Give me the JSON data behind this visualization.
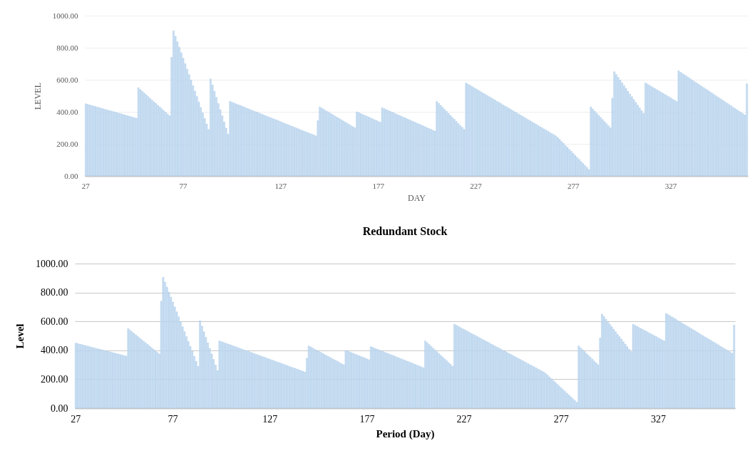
{
  "chart_data": [
    {
      "type": "bar",
      "xlabel": "DAY",
      "ylabel": "LEVEL",
      "color": "#c9def2",
      "grid": "y",
      "ylim": [
        0,
        1000
      ],
      "yticks": [
        {
          "value": 0,
          "label": "0.00"
        },
        {
          "value": 200,
          "label": "200.00"
        },
        {
          "value": 400,
          "label": "400.00"
        },
        {
          "value": 600,
          "label": "600.00"
        },
        {
          "value": 800,
          "label": "800.00"
        },
        {
          "value": 1000,
          "label": "1000.00"
        }
      ],
      "categories": [
        "27",
        null,
        null,
        null,
        null,
        null,
        null,
        null,
        null,
        null,
        null,
        null,
        null,
        null,
        null,
        null,
        null,
        null,
        null,
        null,
        null,
        null,
        null,
        null,
        null,
        null,
        null,
        null,
        null,
        null,
        null,
        null,
        null,
        null,
        null,
        null,
        null,
        null,
        null,
        null,
        null,
        null,
        null,
        null,
        null,
        null,
        null,
        null,
        null,
        null,
        "77",
        null,
        null,
        null,
        null,
        null,
        null,
        null,
        null,
        null,
        null,
        null,
        null,
        null,
        null,
        null,
        null,
        null,
        null,
        null,
        null,
        null,
        null,
        null,
        null,
        null,
        null,
        null,
        null,
        null,
        null,
        null,
        null,
        null,
        null,
        null,
        null,
        null,
        null,
        null,
        null,
        null,
        null,
        null,
        null,
        null,
        null,
        null,
        null,
        null,
        "127",
        null,
        null,
        null,
        null,
        null,
        null,
        null,
        null,
        null,
        null,
        null,
        null,
        null,
        null,
        null,
        null,
        null,
        null,
        null,
        null,
        null,
        null,
        null,
        null,
        null,
        null,
        null,
        null,
        null,
        null,
        null,
        null,
        null,
        null,
        null,
        null,
        null,
        null,
        null,
        null,
        null,
        null,
        null,
        null,
        null,
        null,
        null,
        null,
        null,
        "177",
        null,
        null,
        null,
        null,
        null,
        null,
        null,
        null,
        null,
        null,
        null,
        null,
        null,
        null,
        null,
        null,
        null,
        null,
        null,
        null,
        null,
        null,
        null,
        null,
        null,
        null,
        null,
        null,
        null,
        null,
        null,
        null,
        null,
        null,
        null,
        null,
        null,
        null,
        null,
        null,
        null,
        null,
        null,
        null,
        null,
        null,
        null,
        null,
        null,
        "227",
        null,
        null,
        null,
        null,
        null,
        null,
        null,
        null,
        null,
        null,
        null,
        null,
        null,
        null,
        null,
        null,
        null,
        null,
        null,
        null,
        null,
        null,
        null,
        null,
        null,
        null,
        null,
        null,
        null,
        null,
        null,
        null,
        null,
        null,
        null,
        null,
        null,
        null,
        null,
        null,
        null,
        null,
        null,
        null,
        null,
        null,
        null,
        null,
        null,
        "277",
        null,
        null,
        null,
        null,
        null,
        null,
        null,
        null,
        null,
        null,
        null,
        null,
        null,
        null,
        null,
        null,
        null,
        null,
        null,
        null,
        null,
        null,
        null,
        null,
        null,
        null,
        null,
        null,
        null,
        null,
        null,
        null,
        null,
        null,
        null,
        null,
        null,
        null,
        null,
        null,
        null,
        null,
        null,
        null,
        null,
        null,
        null,
        null,
        null,
        "327",
        null,
        null,
        null,
        null,
        null,
        null,
        null,
        null,
        null,
        null,
        null,
        null,
        null,
        null,
        null,
        null,
        null,
        null,
        null,
        null,
        null,
        null,
        null,
        null,
        null,
        null,
        null,
        null,
        null,
        null,
        null,
        null,
        null,
        null,
        null,
        null,
        null,
        null,
        null
      ],
      "values": [
        450,
        447,
        443,
        440,
        436,
        433,
        429,
        426,
        422,
        419,
        415,
        412,
        408,
        405,
        402,
        398,
        395,
        391,
        388,
        384,
        381,
        377,
        374,
        370,
        367,
        363,
        360,
        550,
        539,
        528,
        517,
        506,
        495,
        484,
        473,
        462,
        452,
        441,
        430,
        419,
        408,
        397,
        386,
        375,
        740,
        905,
        871,
        837,
        803,
        768,
        734,
        700,
        666,
        632,
        598,
        563,
        529,
        495,
        461,
        427,
        393,
        358,
        324,
        290,
        605,
        567,
        528,
        490,
        452,
        413,
        375,
        337,
        298,
        260,
        465,
        460,
        455,
        450,
        445,
        441,
        436,
        431,
        426,
        421,
        416,
        411,
        406,
        401,
        397,
        392,
        387,
        382,
        377,
        372,
        367,
        362,
        357,
        353,
        348,
        343,
        338,
        333,
        328,
        323,
        318,
        314,
        309,
        304,
        299,
        294,
        289,
        284,
        279,
        275,
        270,
        265,
        260,
        255,
        250,
        345,
        430,
        423,
        416,
        408,
        401,
        394,
        387,
        380,
        372,
        365,
        358,
        351,
        343,
        336,
        329,
        322,
        314,
        307,
        300,
        400,
        395,
        389,
        384,
        378,
        373,
        368,
        362,
        357,
        351,
        346,
        340,
        335,
        425,
        420,
        414,
        409,
        404,
        398,
        393,
        387,
        382,
        377,
        371,
        366,
        361,
        355,
        350,
        344,
        339,
        334,
        328,
        323,
        318,
        312,
        307,
        301,
        296,
        291,
        285,
        280,
        465,
        453,
        440,
        428,
        415,
        403,
        390,
        378,
        365,
        353,
        340,
        328,
        315,
        303,
        290,
        580,
        573,
        566,
        558,
        551,
        544,
        537,
        530,
        522,
        515,
        508,
        501,
        494,
        487,
        479,
        472,
        465,
        458,
        451,
        443,
        436,
        429,
        422,
        415,
        408,
        400,
        393,
        386,
        379,
        372,
        365,
        357,
        350,
        343,
        336,
        329,
        322,
        314,
        307,
        300,
        293,
        286,
        279,
        271,
        264,
        257,
        250,
        240,
        228,
        215,
        203,
        190,
        178,
        165,
        153,
        140,
        128,
        115,
        103,
        90,
        78,
        65,
        53,
        40,
        430,
        417,
        404,
        391,
        378,
        365,
        352,
        339,
        326,
        313,
        300,
        485,
        650,
        633,
        615,
        598,
        581,
        563,
        546,
        529,
        511,
        494,
        477,
        459,
        442,
        425,
        407,
        390,
        580,
        573,
        566,
        558,
        551,
        544,
        537,
        530,
        522,
        515,
        508,
        501,
        494,
        486,
        479,
        472,
        465,
        655,
        647,
        639,
        631,
        623,
        615,
        606,
        598,
        590,
        582,
        574,
        566,
        558,
        550,
        542,
        534,
        526,
        517,
        509,
        501,
        493,
        485,
        477,
        469,
        461,
        453,
        445,
        437,
        428,
        420,
        412,
        404,
        396,
        388,
        380,
        575
      ]
    },
    {
      "type": "bar",
      "title": "Redundant Stock",
      "xlabel": "Period (Day)",
      "ylabel": "Level",
      "color": "#c9def2",
      "grid": "y",
      "ylim": [
        0,
        1000
      ],
      "yticks": [
        {
          "value": 0,
          "label": "0.00"
        },
        {
          "value": 200,
          "label": "200.00"
        },
        {
          "value": 400,
          "label": "400.00"
        },
        {
          "value": 600,
          "label": "600.00"
        },
        {
          "value": 800,
          "label": "800.00"
        },
        {
          "value": 1000,
          "label": "1000.00"
        }
      ],
      "categories": [
        "27",
        null,
        null,
        null,
        null,
        null,
        null,
        null,
        null,
        null,
        null,
        null,
        null,
        null,
        null,
        null,
        null,
        null,
        null,
        null,
        null,
        null,
        null,
        null,
        null,
        null,
        null,
        null,
        null,
        null,
        null,
        null,
        null,
        null,
        null,
        null,
        null,
        null,
        null,
        null,
        null,
        null,
        null,
        null,
        null,
        null,
        null,
        null,
        null,
        null,
        "77",
        null,
        null,
        null,
        null,
        null,
        null,
        null,
        null,
        null,
        null,
        null,
        null,
        null,
        null,
        null,
        null,
        null,
        null,
        null,
        null,
        null,
        null,
        null,
        null,
        null,
        null,
        null,
        null,
        null,
        null,
        null,
        null,
        null,
        null,
        null,
        null,
        null,
        null,
        null,
        null,
        null,
        null,
        null,
        null,
        null,
        null,
        null,
        null,
        null,
        "127",
        null,
        null,
        null,
        null,
        null,
        null,
        null,
        null,
        null,
        null,
        null,
        null,
        null,
        null,
        null,
        null,
        null,
        null,
        null,
        null,
        null,
        null,
        null,
        null,
        null,
        null,
        null,
        null,
        null,
        null,
        null,
        null,
        null,
        null,
        null,
        null,
        null,
        null,
        null,
        null,
        null,
        null,
        null,
        null,
        null,
        null,
        null,
        null,
        null,
        "177",
        null,
        null,
        null,
        null,
        null,
        null,
        null,
        null,
        null,
        null,
        null,
        null,
        null,
        null,
        null,
        null,
        null,
        null,
        null,
        null,
        null,
        null,
        null,
        null,
        null,
        null,
        null,
        null,
        null,
        null,
        null,
        null,
        null,
        null,
        null,
        null,
        null,
        null,
        null,
        null,
        null,
        null,
        null,
        null,
        null,
        null,
        null,
        null,
        null,
        "227",
        null,
        null,
        null,
        null,
        null,
        null,
        null,
        null,
        null,
        null,
        null,
        null,
        null,
        null,
        null,
        null,
        null,
        null,
        null,
        null,
        null,
        null,
        null,
        null,
        null,
        null,
        null,
        null,
        null,
        null,
        null,
        null,
        null,
        null,
        null,
        null,
        null,
        null,
        null,
        null,
        null,
        null,
        null,
        null,
        null,
        null,
        null,
        null,
        null,
        "277",
        null,
        null,
        null,
        null,
        null,
        null,
        null,
        null,
        null,
        null,
        null,
        null,
        null,
        null,
        null,
        null,
        null,
        null,
        null,
        null,
        null,
        null,
        null,
        null,
        null,
        null,
        null,
        null,
        null,
        null,
        null,
        null,
        null,
        null,
        null,
        null,
        null,
        null,
        null,
        null,
        null,
        null,
        null,
        null,
        null,
        null,
        null,
        null,
        null,
        "327",
        null,
        null,
        null,
        null,
        null,
        null,
        null,
        null,
        null,
        null,
        null,
        null,
        null,
        null,
        null,
        null,
        null,
        null,
        null,
        null,
        null,
        null,
        null,
        null,
        null,
        null,
        null,
        null,
        null,
        null,
        null,
        null,
        null,
        null,
        null,
        null,
        null,
        null,
        null
      ],
      "values": [
        450,
        447,
        443,
        440,
        436,
        433,
        429,
        426,
        422,
        419,
        415,
        412,
        408,
        405,
        402,
        398,
        395,
        391,
        388,
        384,
        381,
        377,
        374,
        370,
        367,
        363,
        360,
        550,
        539,
        528,
        517,
        506,
        495,
        484,
        473,
        462,
        452,
        441,
        430,
        419,
        408,
        397,
        386,
        375,
        740,
        905,
        871,
        837,
        803,
        768,
        734,
        700,
        666,
        632,
        598,
        563,
        529,
        495,
        461,
        427,
        393,
        358,
        324,
        290,
        605,
        567,
        528,
        490,
        452,
        413,
        375,
        337,
        298,
        260,
        465,
        460,
        455,
        450,
        445,
        441,
        436,
        431,
        426,
        421,
        416,
        411,
        406,
        401,
        397,
        392,
        387,
        382,
        377,
        372,
        367,
        362,
        357,
        353,
        348,
        343,
        338,
        333,
        328,
        323,
        318,
        314,
        309,
        304,
        299,
        294,
        289,
        284,
        279,
        275,
        270,
        265,
        260,
        255,
        250,
        345,
        430,
        423,
        416,
        408,
        401,
        394,
        387,
        380,
        372,
        365,
        358,
        351,
        343,
        336,
        329,
        322,
        314,
        307,
        300,
        400,
        395,
        389,
        384,
        378,
        373,
        368,
        362,
        357,
        351,
        346,
        340,
        335,
        425,
        420,
        414,
        409,
        404,
        398,
        393,
        387,
        382,
        377,
        371,
        366,
        361,
        355,
        350,
        344,
        339,
        334,
        328,
        323,
        318,
        312,
        307,
        301,
        296,
        291,
        285,
        280,
        465,
        453,
        440,
        428,
        415,
        403,
        390,
        378,
        365,
        353,
        340,
        328,
        315,
        303,
        290,
        580,
        573,
        566,
        558,
        551,
        544,
        537,
        530,
        522,
        515,
        508,
        501,
        494,
        487,
        479,
        472,
        465,
        458,
        451,
        443,
        436,
        429,
        422,
        415,
        408,
        400,
        393,
        386,
        379,
        372,
        365,
        357,
        350,
        343,
        336,
        329,
        322,
        314,
        307,
        300,
        293,
        286,
        279,
        271,
        264,
        257,
        250,
        240,
        228,
        215,
        203,
        190,
        178,
        165,
        153,
        140,
        128,
        115,
        103,
        90,
        78,
        65,
        53,
        40,
        430,
        417,
        404,
        391,
        378,
        365,
        352,
        339,
        326,
        313,
        300,
        485,
        650,
        633,
        615,
        598,
        581,
        563,
        546,
        529,
        511,
        494,
        477,
        459,
        442,
        425,
        407,
        390,
        580,
        573,
        566,
        558,
        551,
        544,
        537,
        530,
        522,
        515,
        508,
        501,
        494,
        486,
        479,
        472,
        465,
        655,
        647,
        639,
        631,
        623,
        615,
        606,
        598,
        590,
        582,
        574,
        566,
        558,
        550,
        542,
        534,
        526,
        517,
        509,
        501,
        493,
        485,
        477,
        469,
        461,
        453,
        445,
        437,
        428,
        420,
        412,
        404,
        396,
        388,
        380,
        575
      ]
    }
  ]
}
